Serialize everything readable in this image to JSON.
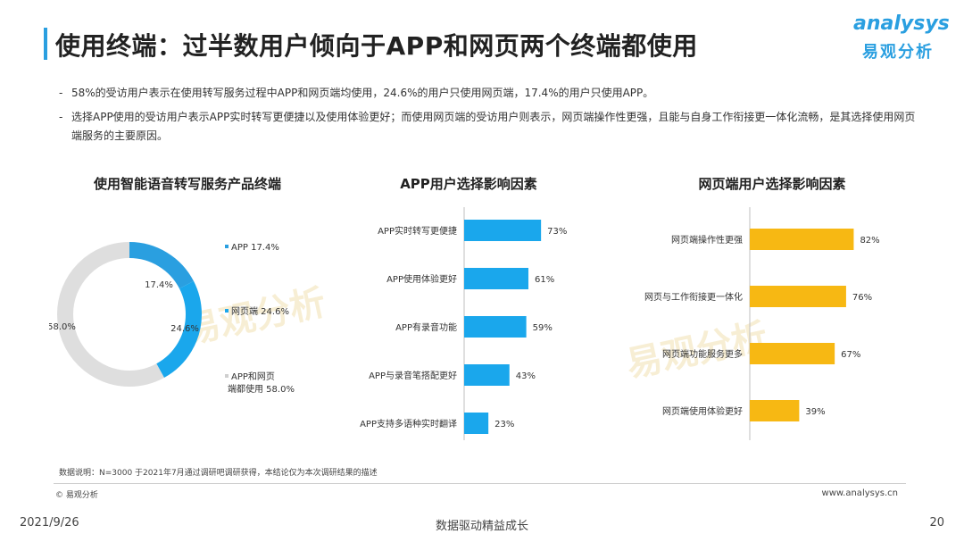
{
  "header": {
    "title": "使用终端：过半数用户倾向于APP和网页两个终端都使用"
  },
  "logo": {
    "word": "analysys",
    "cn": "易观分析"
  },
  "bullets": [
    "58%的受访用户表示在使用转写服务过程中APP和网页端均使用，24.6%的用户只使用网页端，17.4%的用户只使用APP。",
    "选择APP使用的受访用户表示APP实时转写更便捷以及使用体验更好；而使用网页端的受访用户则表示，网页端操作性更强，且能与自身工作衔接更一体化流畅，是其选择使用网页端服务的主要原因。"
  ],
  "colors": {
    "accent": "#2a9fe0",
    "bar_blue": "#1aa7ec",
    "bar_yellow": "#f7b813",
    "donut_grey": "#dedede"
  },
  "chart_data": [
    {
      "type": "pie",
      "title": "使用智能语音转写服务产品终端",
      "series": [
        {
          "name": "APP",
          "value": 17.4,
          "label": "17.4%",
          "legend": "APP 17.4%",
          "color": "#2a9fe0"
        },
        {
          "name": "网页端",
          "value": 24.6,
          "label": "24.6%",
          "legend": "网页端 24.6%",
          "color": "#1aa7ec"
        },
        {
          "name": "APP和网页端都使用",
          "value": 58.0,
          "label": "58.0%",
          "legend": "APP和网页端都使用 58.0%",
          "color": "#dedede"
        }
      ]
    },
    {
      "type": "bar",
      "title": "APP用户选择影响因素",
      "categories": [
        "APP实时转写更便捷",
        "APP使用体验更好",
        "APP有录音功能",
        "APP与录音笔搭配更好",
        "APP支持多语种实时翻译"
      ],
      "values": [
        73,
        61,
        59,
        43,
        23
      ],
      "labels": [
        "73%",
        "61%",
        "59%",
        "43%",
        "23%"
      ],
      "color": "#1aa7ec"
    },
    {
      "type": "bar",
      "title": "网页端用户选择影响因素",
      "categories": [
        "网页端操作性更强",
        "网页与工作衔接更一体化",
        "网页端功能服务更多",
        "网页端使用体验更好"
      ],
      "values": [
        82,
        76,
        67,
        39
      ],
      "labels": [
        "82%",
        "76%",
        "67%",
        "39%"
      ],
      "color": "#f7b813"
    }
  ],
  "footer": {
    "note": "数据说明：N=3000  于2021年7月通过调研吧调研获得，本结论仅为本次调研结果的描述",
    "copyright": "© 易观分析",
    "website": "www.analysys.cn",
    "date": "2021/9/26",
    "slogan": "数据驱动精益成长",
    "page": "20"
  }
}
